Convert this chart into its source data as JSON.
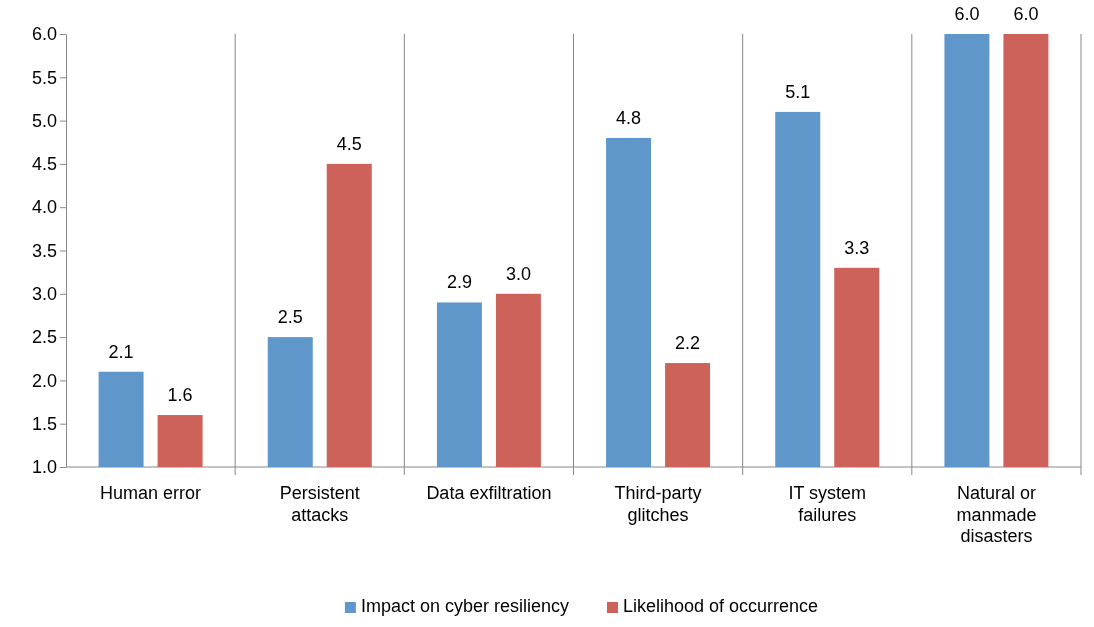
{
  "chart_data": {
    "type": "bar",
    "categories": [
      "Human error",
      "Persistent\nattacks",
      "Data exfiltration",
      "Third-party\nglitches",
      "IT system\nfailures",
      "Natural or\nmanmade\ndisasters"
    ],
    "series": [
      {
        "name": "Impact on cyber resiliency",
        "color": "#6097cb",
        "values": [
          2.1,
          2.5,
          2.9,
          4.8,
          5.1,
          6.0
        ],
        "value_labels": [
          "2.1",
          "2.5",
          "2.9",
          "4.8",
          "5.1",
          "6.0"
        ]
      },
      {
        "name": "Likelihood of occurrence",
        "color": "#cd625b",
        "values": [
          1.6,
          4.5,
          3.0,
          2.2,
          3.3,
          6.0
        ],
        "value_labels": [
          "1.6",
          "4.5",
          "3.0",
          "2.2",
          "3.3",
          "6.0"
        ]
      }
    ],
    "ylim": [
      1,
      6
    ],
    "yticks": [
      {
        "value": 1,
        "label": "1.0"
      },
      {
        "value": 1.5,
        "label": "1.5"
      },
      {
        "value": 2,
        "label": "2.0"
      },
      {
        "value": 2.5,
        "label": "2.5"
      },
      {
        "value": 3,
        "label": "3.0"
      },
      {
        "value": 3.5,
        "label": "3.5"
      },
      {
        "value": 4,
        "label": "4.0"
      },
      {
        "value": 4.5,
        "label": "4.5"
      },
      {
        "value": 5,
        "label": "5.0"
      },
      {
        "value": 5.5,
        "label": "5.5"
      },
      {
        "value": 6,
        "label": "6.0"
      }
    ],
    "grid": "x",
    "legend": "bottom"
  }
}
